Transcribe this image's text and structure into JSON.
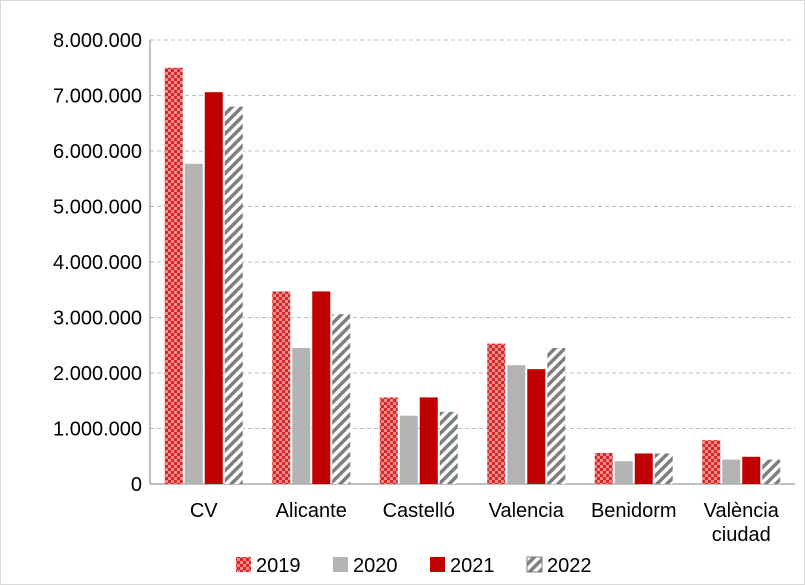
{
  "chart_data": {
    "type": "bar",
    "categories": [
      [
        "CV"
      ],
      [
        "Alicante"
      ],
      [
        "Castelló"
      ],
      [
        "Valencia"
      ],
      [
        "Benidorm"
      ],
      [
        "València",
        "ciudad"
      ]
    ],
    "series": [
      {
        "name": "2019",
        "color": "#e03c3c",
        "pattern": "checker",
        "values": [
          7500000,
          3470000,
          1560000,
          2530000,
          560000,
          790000
        ]
      },
      {
        "name": "2020",
        "color": "#b3b3b3",
        "pattern": "solid",
        "values": [
          5770000,
          2450000,
          1230000,
          2140000,
          410000,
          440000
        ]
      },
      {
        "name": "2021",
        "color": "#c00000",
        "pattern": "solid",
        "values": [
          7060000,
          3470000,
          1560000,
          2070000,
          550000,
          490000
        ]
      },
      {
        "name": "2022",
        "color": "#8c8c8c",
        "pattern": "diagonal",
        "values": [
          6800000,
          3060000,
          1300000,
          2450000,
          550000,
          440000
        ]
      }
    ],
    "yticks": [
      "0",
      "1.000.000",
      "2.000.000",
      "3.000.000",
      "4.000.000",
      "5.000.000",
      "6.000.000",
      "7.000.000",
      "8.000.000"
    ],
    "ylim": [
      0,
      8000000
    ],
    "grid": true,
    "legend_position": "bottom"
  }
}
